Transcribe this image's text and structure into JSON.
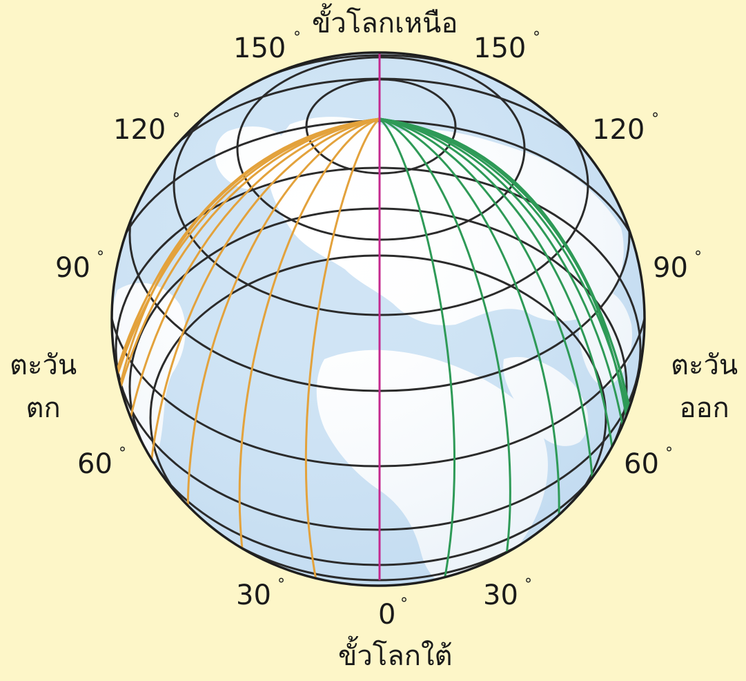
{
  "labels": {
    "north_pole": "ขั้วโลกเหนือ",
    "south_pole": "ขั้วโลกใต้",
    "west_line1": "ตะวัน",
    "west_line2": "ตก",
    "east_line1": "ตะวัน",
    "east_line2": "ออก",
    "degree_symbol": "°"
  },
  "longitude_labels": {
    "west": [
      "150",
      "120",
      "90",
      "60",
      "30"
    ],
    "prime": "0",
    "east": [
      "150",
      "120",
      "90",
      "60",
      "30"
    ]
  },
  "colors": {
    "background": "#fdf6c8",
    "ocean": "#cfe4f5",
    "land": "#ffffff",
    "parallel_lines": "#2b2b2b",
    "west_meridians": "#e3a23c",
    "east_meridians": "#2e9a57",
    "prime_meridian": "#c4288e"
  }
}
